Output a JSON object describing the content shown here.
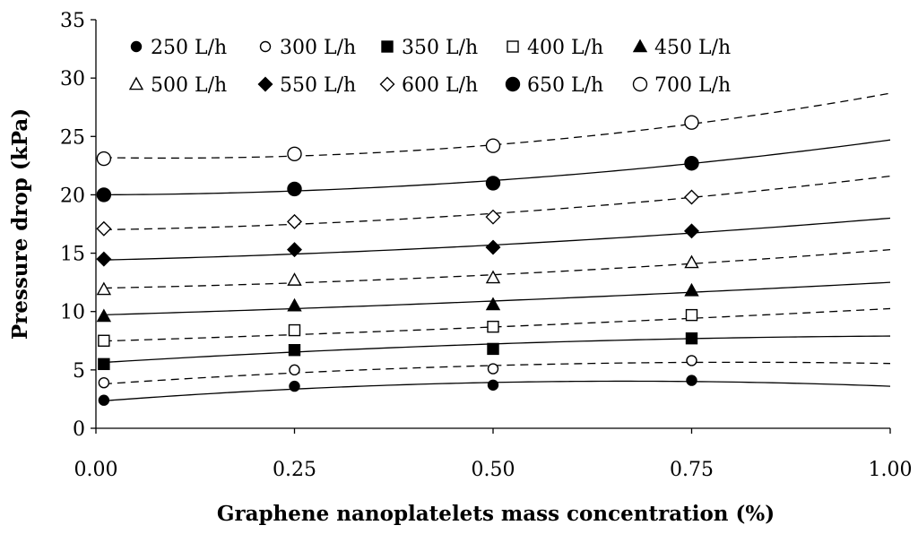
{
  "chart_data": {
    "type": "scatter",
    "title": "",
    "xlabel": "Graphene nanoplatelets mass concentration (%)",
    "ylabel": "Pressure drop (kPa)",
    "xlim": [
      0,
      1
    ],
    "ylim": [
      0,
      35
    ],
    "xticks": [
      "0.00",
      "0.25",
      "0.50",
      "0.75",
      "1.00"
    ],
    "yticks": [
      "0",
      "5",
      "10",
      "15",
      "20",
      "25",
      "30",
      "35"
    ],
    "grid": false,
    "legend_position": "top",
    "x": [
      0.01,
      0.25,
      0.5,
      0.75
    ],
    "series": [
      {
        "name": "250 L/h",
        "marker": "circle",
        "filled": true,
        "size": "small",
        "values": [
          2.4,
          3.6,
          3.7,
          4.1
        ],
        "fit": "solid",
        "fit_coeffs": [
          2.3,
          5.2,
          -3.9
        ]
      },
      {
        "name": "300 L/h",
        "marker": "circle",
        "filled": false,
        "size": "small",
        "values": [
          3.9,
          5.0,
          5.1,
          5.8
        ],
        "fit": "dashed",
        "fit_coeffs": [
          3.75,
          4.7,
          -2.9
        ]
      },
      {
        "name": "350 L/h",
        "marker": "square",
        "filled": true,
        "size": "small",
        "values": [
          5.5,
          6.7,
          6.8,
          7.7
        ],
        "fit": "solid",
        "fit_coeffs": [
          5.6,
          4.2,
          -1.9
        ]
      },
      {
        "name": "400 L/h",
        "marker": "square",
        "filled": false,
        "size": "small",
        "values": [
          7.5,
          8.4,
          8.7,
          9.7
        ],
        "fit": "dashed",
        "fit_coeffs": [
          7.45,
          2.1,
          0.7
        ]
      },
      {
        "name": "450 L/h",
        "marker": "triangle",
        "filled": true,
        "size": "small",
        "values": [
          9.6,
          10.5,
          10.6,
          11.8
        ],
        "fit": "solid",
        "fit_coeffs": [
          9.7,
          2.0,
          0.8
        ]
      },
      {
        "name": "500 L/h",
        "marker": "triangle",
        "filled": false,
        "size": "small",
        "values": [
          11.9,
          12.7,
          12.9,
          14.2
        ],
        "fit": "dashed",
        "fit_coeffs": [
          12.0,
          1.3,
          2.0
        ]
      },
      {
        "name": "550 L/h",
        "marker": "diamond",
        "filled": true,
        "size": "small",
        "values": [
          14.5,
          15.3,
          15.5,
          16.9
        ],
        "fit": "solid",
        "fit_coeffs": [
          14.4,
          1.6,
          2.0
        ]
      },
      {
        "name": "600 L/h",
        "marker": "diamond",
        "filled": false,
        "size": "small",
        "values": [
          17.1,
          17.7,
          18.1,
          19.8
        ],
        "fit": "dashed",
        "fit_coeffs": [
          17.0,
          1.0,
          3.6
        ]
      },
      {
        "name": "650 L/h",
        "marker": "circle",
        "filled": true,
        "size": "large",
        "values": [
          20.0,
          20.5,
          21.0,
          22.7
        ],
        "fit": "solid",
        "fit_coeffs": [
          20.0,
          0.2,
          4.5
        ]
      },
      {
        "name": "700 L/h",
        "marker": "circle",
        "filled": false,
        "size": "large",
        "values": [
          23.1,
          23.5,
          24.2,
          26.2
        ],
        "fit": "dashed",
        "fit_coeffs": [
          23.2,
          -1.2,
          6.7
        ]
      }
    ]
  }
}
